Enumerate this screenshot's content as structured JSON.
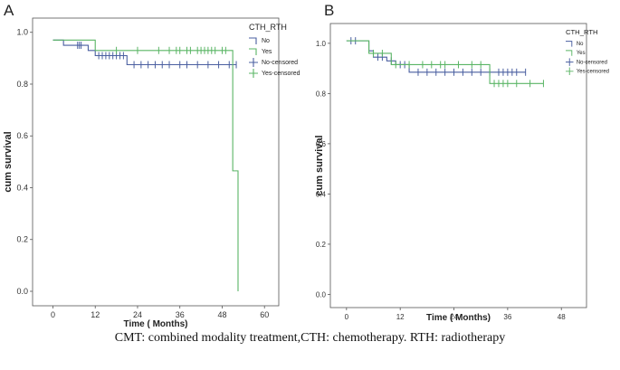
{
  "figure": {
    "caption": "CMT: combined modality treatment,CTH: chemotherapy. RTH: radiotherapy"
  },
  "chart_data": [
    {
      "panel_label": "A",
      "type": "line",
      "title": "",
      "xlabel": "Time ( Months)",
      "ylabel": "cum survival",
      "xlim": [
        -5,
        62
      ],
      "ylim": [
        0,
        1.02
      ],
      "xticks": [
        0,
        12,
        24,
        36,
        48,
        60
      ],
      "yticks": [
        0.0,
        0.2,
        0.4,
        0.6,
        0.8,
        1.0
      ],
      "ytick_labels": [
        "0.0",
        "0.2",
        "0.4",
        "0.6",
        "0.8",
        "1.0"
      ],
      "legend": {
        "title": "CTH_RTH",
        "placement": "top-right",
        "entries": [
          "No",
          "Yes",
          "No-censored",
          "Yes-censored"
        ]
      },
      "series": [
        {
          "name": "No",
          "color": "#4a5fa0",
          "steps": [
            [
              0,
              0.97
            ],
            [
              3,
              0.95
            ],
            [
              10,
              0.93
            ],
            [
              12,
              0.91
            ],
            [
              21,
              0.875
            ],
            [
              52,
              0.875
            ]
          ],
          "censored": [
            7,
            7.5,
            8,
            13,
            14,
            15,
            16,
            17,
            18,
            19,
            20,
            23,
            25,
            27,
            29,
            31,
            33,
            36,
            38,
            41,
            44,
            47,
            50,
            52
          ]
        },
        {
          "name": "Yes",
          "color": "#5ab565",
          "steps": [
            [
              0,
              0.97
            ],
            [
              12,
              0.93
            ],
            [
              51,
              0.93
            ],
            [
              51,
              0.465
            ],
            [
              52.5,
              0.465
            ],
            [
              52.5,
              0.0
            ]
          ],
          "censored": [
            18,
            24,
            30,
            33,
            35,
            36,
            38,
            39,
            41,
            42,
            43,
            44,
            45,
            46,
            48,
            49
          ]
        }
      ]
    },
    {
      "panel_label": "B",
      "type": "line",
      "title": "",
      "xlabel": "Time ( Months)",
      "ylabel": "cum survival",
      "xlim": [
        -3,
        52
      ],
      "ylim": [
        -0.02,
        1.05
      ],
      "xticks": [
        0,
        12,
        24,
        36,
        48
      ],
      "yticks": [
        0.0,
        0.2,
        0.4,
        0.6,
        0.8,
        1.0
      ],
      "ytick_labels": [
        "0.0",
        "0.2",
        "0.4",
        "0.6",
        "0.8",
        "1.0"
      ],
      "legend": {
        "title": "CTH_RTH",
        "placement": "top-right",
        "entries": [
          "No",
          "Yes",
          "No-censored",
          "Yes-censored"
        ]
      },
      "series": [
        {
          "name": "No",
          "color": "#4a5fa0",
          "steps": [
            [
              0,
              1.01
            ],
            [
              5,
              0.97
            ],
            [
              6,
              0.945
            ],
            [
              9,
              0.93
            ],
            [
              11,
              0.915
            ],
            [
              14,
              0.885
            ],
            [
              40,
              0.885
            ]
          ],
          "censored": [
            1,
            2,
            7,
            8,
            10,
            12,
            13,
            16,
            18,
            20,
            22,
            24,
            26,
            28,
            30,
            32,
            34,
            35,
            36,
            37,
            38,
            40
          ]
        },
        {
          "name": "Yes",
          "color": "#5ab565",
          "steps": [
            [
              0,
              1.01
            ],
            [
              5,
              0.96
            ],
            [
              10,
              0.915
            ],
            [
              32,
              0.915
            ],
            [
              32,
              0.84
            ],
            [
              44,
              0.84
            ]
          ],
          "censored": [
            6,
            8,
            11,
            14,
            17,
            19,
            21,
            22,
            25,
            28,
            30,
            33,
            34,
            35,
            36,
            38,
            41,
            44
          ]
        }
      ]
    }
  ]
}
